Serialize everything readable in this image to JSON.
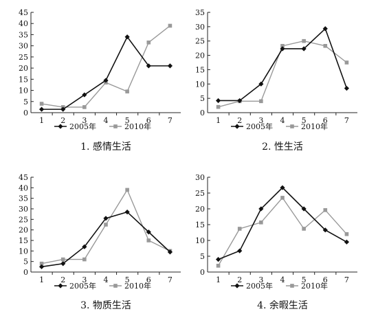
{
  "chart_data": [
    {
      "type": "line",
      "caption": "1. 感情生活",
      "x": [
        1,
        2,
        3,
        4,
        5,
        6,
        7
      ],
      "ylim": [
        0,
        45
      ],
      "yticks": [
        0,
        5,
        10,
        15,
        20,
        25,
        30,
        35,
        40,
        45
      ],
      "series": [
        {
          "name": "2005年",
          "color": "#111111",
          "marker": "diamond",
          "values": [
            1.5,
            1.5,
            8,
            14.5,
            34,
            21,
            21
          ]
        },
        {
          "name": "2010年",
          "color": "#999999",
          "marker": "square",
          "values": [
            4,
            2.5,
            2.5,
            13.5,
            9.5,
            31.5,
            39
          ]
        }
      ],
      "legend": "bottom"
    },
    {
      "type": "line",
      "caption": "2. 性生活",
      "x": [
        1,
        2,
        3,
        4,
        5,
        6,
        7
      ],
      "ylim": [
        0,
        35
      ],
      "yticks": [
        0,
        5,
        10,
        15,
        20,
        25,
        30,
        35
      ],
      "series": [
        {
          "name": "2005年",
          "color": "#111111",
          "marker": "diamond",
          "values": [
            4.2,
            4.2,
            10,
            22.3,
            22.3,
            29.3,
            8.5
          ]
        },
        {
          "name": "2010年",
          "color": "#999999",
          "marker": "square",
          "values": [
            2,
            4,
            4,
            23.3,
            25,
            23.3,
            17.5
          ]
        }
      ],
      "legend": "bottom"
    },
    {
      "type": "line",
      "caption": "3. 物质生活",
      "x": [
        1,
        2,
        3,
        4,
        5,
        6,
        7
      ],
      "ylim": [
        0,
        45
      ],
      "yticks": [
        0,
        5,
        10,
        15,
        20,
        25,
        30,
        35,
        40,
        45
      ],
      "series": [
        {
          "name": "2005年",
          "color": "#111111",
          "marker": "diamond",
          "values": [
            2.5,
            4,
            12,
            25.5,
            28.5,
            19,
            9.5
          ]
        },
        {
          "name": "2010年",
          "color": "#999999",
          "marker": "square",
          "values": [
            4,
            6,
            6,
            22.5,
            39,
            15,
            10
          ]
        }
      ],
      "legend": "bottom"
    },
    {
      "type": "line",
      "caption": "4. 余暇生活",
      "x": [
        1,
        2,
        3,
        4,
        5,
        6,
        7
      ],
      "ylim": [
        0,
        30
      ],
      "yticks": [
        0,
        5,
        10,
        15,
        20,
        25,
        30
      ],
      "series": [
        {
          "name": "2005年",
          "color": "#111111",
          "marker": "diamond",
          "values": [
            4,
            6.7,
            20,
            26.7,
            20,
            13.3,
            9.5
          ]
        },
        {
          "name": "2010年",
          "color": "#999999",
          "marker": "square",
          "values": [
            2,
            13.7,
            15.7,
            23.5,
            13.7,
            19.6,
            12
          ]
        }
      ],
      "legend": "bottom"
    }
  ]
}
